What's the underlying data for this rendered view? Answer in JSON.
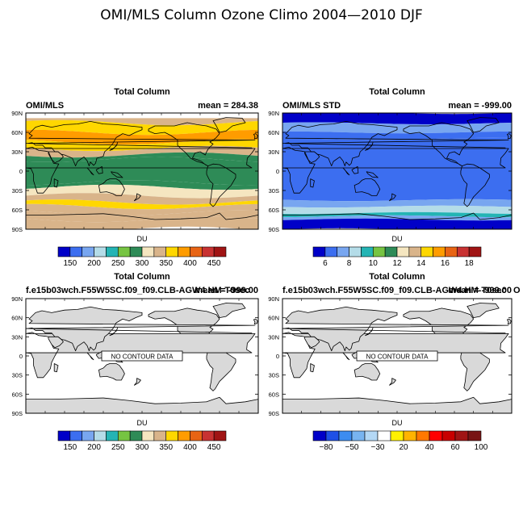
{
  "figure_title": "OMI/MLS Column Ozone Climo 2004—2010 DJF",
  "colors": {
    "du_scale": [
      "#0000c8",
      "#3c6ef0",
      "#78a6f0",
      "#b4dce8",
      "#24b4b4",
      "#76c442",
      "#2e8b57",
      "#f5e6c0",
      "#d9b48a",
      "#ffd700",
      "#ff9c00",
      "#e86414",
      "#c83232",
      "#a01414"
    ],
    "std_scale": [
      "#0000c8",
      "#3c6ef0",
      "#78a6f0",
      "#b4dce8",
      "#24b4b4",
      "#76c442",
      "#2e8b57",
      "#f5e6c0",
      "#d9b48a",
      "#ffd700",
      "#ff9c00",
      "#e86414",
      "#c83232",
      "#a01414"
    ],
    "diff_scale": [
      "#0000c8",
      "#1e50e6",
      "#3c8cf0",
      "#78b4f0",
      "#b4d8f5",
      "#ffffff",
      "#fff000",
      "#ffb400",
      "#ff7800",
      "#ff0000",
      "#c80000",
      "#a01414",
      "#781414"
    ],
    "land": "#d9d9d9",
    "coast": "#000000"
  },
  "chart_data": [
    {
      "type": "heatmap",
      "panel_title": "Total Column",
      "left_label": "OMI/MLS",
      "right_label": "mean = 284.38",
      "yticks": [
        "90N",
        "60N",
        "30N",
        "0",
        "30S",
        "60S",
        "90S"
      ],
      "ylim": [
        -90,
        90
      ],
      "xlim": [
        0,
        360
      ],
      "unit": "DU",
      "colorbar_ticks": [
        "150",
        "200",
        "250",
        "300",
        "350",
        "400",
        "450"
      ],
      "zonal_bands": [
        {
          "lat": [
            75,
            90
          ],
          "value": 300
        },
        {
          "lat": [
            60,
            75
          ],
          "value": 340
        },
        {
          "lat": [
            45,
            60
          ],
          "value": 370
        },
        {
          "lat": [
            35,
            45
          ],
          "value": 330
        },
        {
          "lat": [
            25,
            35
          ],
          "value": 300
        },
        {
          "lat": [
            18,
            25
          ],
          "value": 270
        },
        {
          "lat": [
            -18,
            18
          ],
          "value": 255
        },
        {
          "lat": [
            -25,
            -18
          ],
          "value": 265
        },
        {
          "lat": [
            -38,
            -25
          ],
          "value": 280
        },
        {
          "lat": [
            -48,
            -38
          ],
          "value": 300
        },
        {
          "lat": [
            -55,
            -48
          ],
          "value": 330
        },
        {
          "lat": [
            -65,
            -55
          ],
          "value": 315
        },
        {
          "lat": [
            -75,
            -65
          ],
          "value": 305
        },
        {
          "lat": [
            -90,
            -75
          ],
          "value": 300
        }
      ]
    },
    {
      "type": "heatmap",
      "panel_title": "Total Column",
      "left_label": "OMI/MLS STD",
      "right_label": "mean = -999.00",
      "yticks": [
        "90N",
        "60N",
        "30N",
        "0",
        "30S",
        "60S",
        "90S"
      ],
      "ylim": [
        -90,
        90
      ],
      "xlim": [
        0,
        360
      ],
      "unit": "DU",
      "colorbar_ticks": [
        "6",
        "8",
        "10",
        "12",
        "14",
        "16",
        "18"
      ],
      "zonal_bands": [
        {
          "lat": [
            74,
            90
          ],
          "value": 0
        },
        {
          "lat": [
            60,
            74
          ],
          "value": 6
        },
        {
          "lat": [
            50,
            60
          ],
          "value": 5
        },
        {
          "lat": [
            -45,
            50
          ],
          "value": 5
        },
        {
          "lat": [
            -55,
            -45
          ],
          "value": 6
        },
        {
          "lat": [
            -65,
            -55
          ],
          "value": 7
        },
        {
          "lat": [
            -70,
            -65
          ],
          "value": 8
        },
        {
          "lat": [
            -75,
            -70
          ],
          "value": 6
        },
        {
          "lat": [
            -90,
            -75
          ],
          "value": 0
        }
      ]
    },
    {
      "type": "heatmap",
      "panel_title": "Total Column",
      "left_label": "f.e15b03wch.F55W5SC.f09_f09.CLB-AGW4.HM-T0sec",
      "right_label": "mean = -999.00",
      "no_data_label": "NO CONTOUR DATA",
      "yticks": [
        "90N",
        "60N",
        "30N",
        "0",
        "30S",
        "60S",
        "90S"
      ],
      "ylim": [
        -90,
        90
      ],
      "xlim": [
        0,
        360
      ],
      "unit": "DU",
      "colorbar_ticks": [
        "150",
        "200",
        "250",
        "300",
        "350",
        "400",
        "450"
      ]
    },
    {
      "type": "heatmap",
      "panel_title": "Total Column",
      "left_label": "f.e15b03wch.F55W5SC.f09_f09.CLB-AGW4.HM-T0sec",
      "right_label": "mean = -999.00",
      "right_label_extra": "O",
      "no_data_label": "NO CONTOUR DATA",
      "yticks": [
        "90N",
        "60N",
        "30N",
        "0",
        "30S",
        "60S",
        "90S"
      ],
      "ylim": [
        -90,
        90
      ],
      "xlim": [
        0,
        360
      ],
      "unit": "DU",
      "colorbar_ticks": [
        "−80",
        "−50",
        "−30",
        "20",
        "40",
        "60",
        "100"
      ]
    }
  ]
}
